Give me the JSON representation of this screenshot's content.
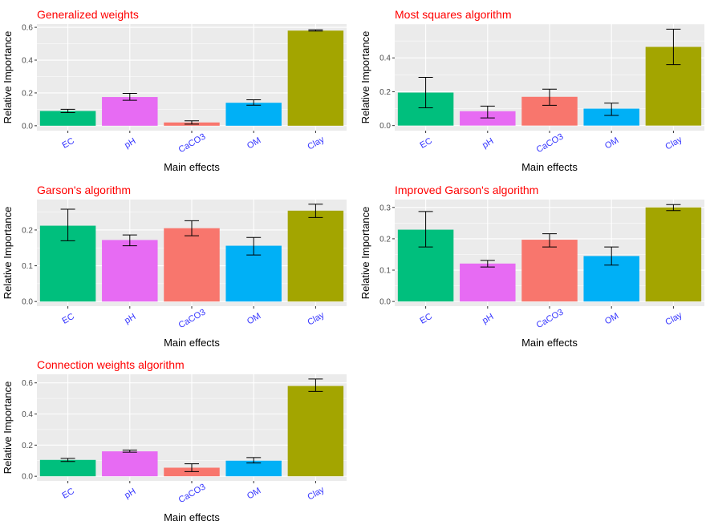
{
  "chart_data": [
    {
      "type": "bar",
      "title": "Generalized weights",
      "xlabel": "Main effects",
      "ylabel": "Relative Importance",
      "categories": [
        "EC",
        "pH",
        "CaCO3",
        "OM",
        "Clay"
      ],
      "values": [
        0.09,
        0.175,
        0.02,
        0.14,
        0.58
      ],
      "error_low": [
        0.08,
        0.155,
        0.01,
        0.125,
        0.577
      ],
      "error_high": [
        0.1,
        0.197,
        0.03,
        0.158,
        0.585
      ],
      "yticks": [
        "0.0",
        "0.2",
        "0.4",
        "0.6"
      ],
      "ylim": [
        -0.03,
        0.62
      ],
      "grid": true
    },
    {
      "type": "bar",
      "title": "Most squares algorithm",
      "xlabel": "Main effects",
      "ylabel": "Relative Importance",
      "categories": [
        "EC",
        "pH",
        "CaCO3",
        "OM",
        "Clay"
      ],
      "values": [
        0.195,
        0.085,
        0.17,
        0.1,
        0.465
      ],
      "error_low": [
        0.105,
        0.045,
        0.12,
        0.06,
        0.36
      ],
      "error_high": [
        0.285,
        0.115,
        0.215,
        0.133,
        0.57
      ],
      "yticks": [
        "0.0",
        "0.2",
        "0.4"
      ],
      "ylim": [
        -0.03,
        0.6
      ],
      "grid": true
    },
    {
      "type": "bar",
      "title": "Garson's algorithm",
      "xlabel": "Main effects",
      "ylabel": "Relative Importance",
      "categories": [
        "EC",
        "pH",
        "CaCO3",
        "OM",
        "Clay"
      ],
      "values": [
        0.212,
        0.172,
        0.205,
        0.156,
        0.254
      ],
      "error_low": [
        0.17,
        0.156,
        0.184,
        0.13,
        0.235
      ],
      "error_high": [
        0.258,
        0.186,
        0.226,
        0.179,
        0.272
      ],
      "yticks": [
        "0.0",
        "0.1",
        "0.2"
      ],
      "ylim": [
        -0.013,
        0.285
      ],
      "grid": true
    },
    {
      "type": "bar",
      "title": "Improved Garson's algorithm",
      "xlabel": "Main effects",
      "ylabel": "Relative Importance",
      "categories": [
        "EC",
        "pH",
        "CaCO3",
        "OM",
        "Clay"
      ],
      "values": [
        0.229,
        0.121,
        0.197,
        0.145,
        0.3
      ],
      "error_low": [
        0.174,
        0.11,
        0.174,
        0.116,
        0.29
      ],
      "error_high": [
        0.287,
        0.131,
        0.216,
        0.174,
        0.309
      ],
      "yticks": [
        "0.0",
        "0.1",
        "0.2",
        "0.3"
      ],
      "ylim": [
        -0.015,
        0.325
      ],
      "grid": true
    },
    {
      "type": "bar",
      "title": "Connection weights algorithm",
      "xlabel": "Main effects",
      "ylabel": "Relative Importance",
      "categories": [
        "EC",
        "pH",
        "CaCO3",
        "OM",
        "Clay"
      ],
      "values": [
        0.105,
        0.16,
        0.055,
        0.1,
        0.58
      ],
      "error_low": [
        0.095,
        0.155,
        0.03,
        0.085,
        0.545
      ],
      "error_high": [
        0.115,
        0.168,
        0.08,
        0.12,
        0.625
      ],
      "yticks": [
        "0.0",
        "0.2",
        "0.4",
        "0.6"
      ],
      "ylim": [
        -0.03,
        0.655
      ],
      "grid": true
    }
  ],
  "colors": {
    "EC": "#00BF7D",
    "pH": "#E76BF3",
    "CaCO3": "#F8766D",
    "OM": "#00B0F6",
    "Clay": "#A3A500",
    "panel_bg": "#EBEBEB",
    "title": "#FF0000",
    "tick_label": "#3333FF"
  }
}
